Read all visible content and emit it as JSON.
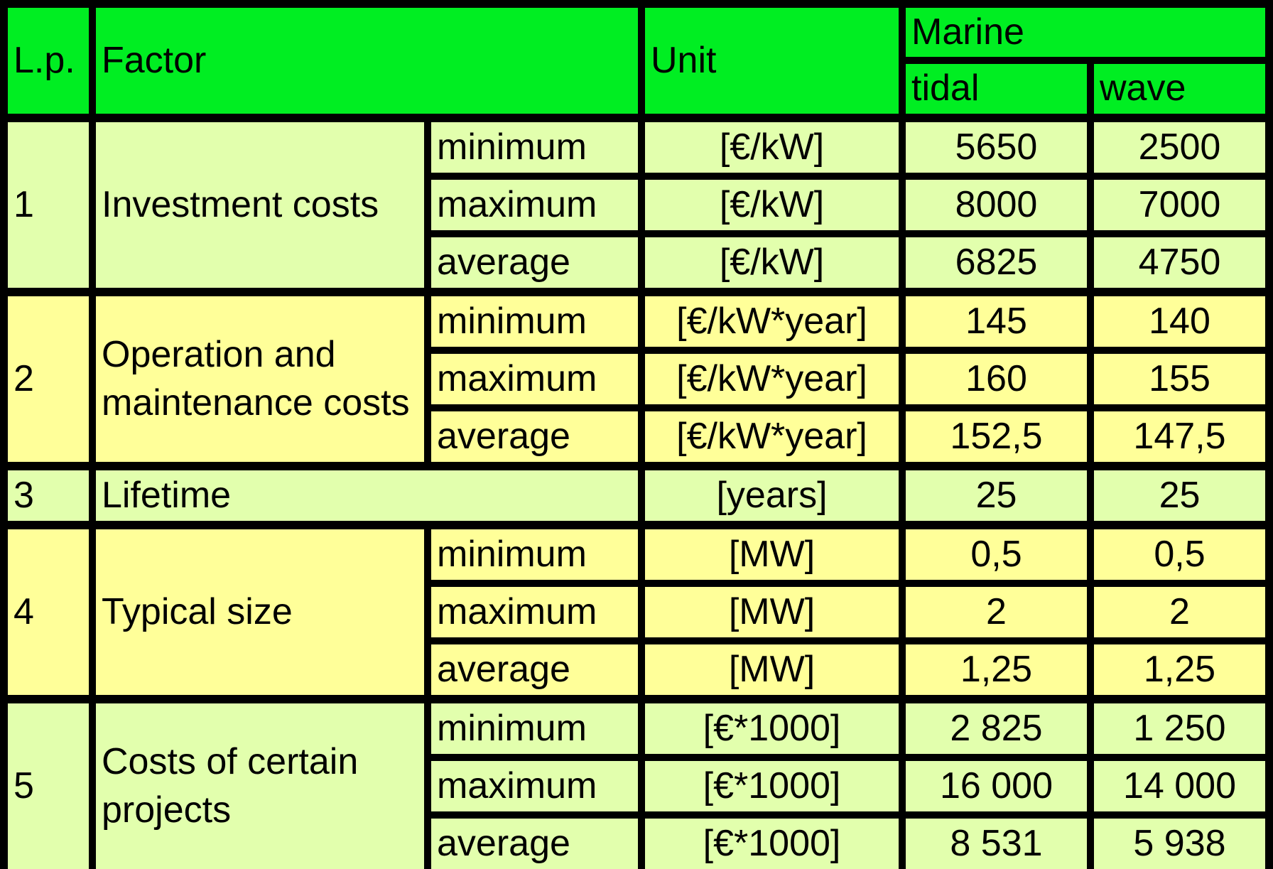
{
  "colors": {
    "header_bg": "#00ee22",
    "row_green_bg": "#e2ffad",
    "row_yellow_bg": "#ffff99",
    "grid_lines": "#000000"
  },
  "header": {
    "lp": "L.p.",
    "factor": "Factor",
    "unit": "Unit",
    "marine": "Marine",
    "tidal": "tidal",
    "wave": "wave"
  },
  "rows": [
    {
      "lp": "1",
      "factor": "Investment costs",
      "color": "green",
      "subrows": [
        {
          "label": "minimum",
          "unit": "[€/kW]",
          "tidal": "5650",
          "wave": "2500"
        },
        {
          "label": "maximum",
          "unit": "[€/kW]",
          "tidal": "8000",
          "wave": "7000"
        },
        {
          "label": "average",
          "unit": "[€/kW]",
          "tidal": "6825",
          "wave": "4750"
        }
      ]
    },
    {
      "lp": "2",
      "factor": "Operation and maintenance costs",
      "color": "yellow",
      "subrows": [
        {
          "label": "minimum",
          "unit": "[€/kW*year]",
          "tidal": "145",
          "wave": "140"
        },
        {
          "label": "maximum",
          "unit": "[€/kW*year]",
          "tidal": "160",
          "wave": "155"
        },
        {
          "label": "average",
          "unit": "[€/kW*year]",
          "tidal": "152,5",
          "wave": "147,5"
        }
      ]
    },
    {
      "lp": "3",
      "factor": "Lifetime",
      "color": "green",
      "unit": "[years]",
      "tidal": "25",
      "wave": "25"
    },
    {
      "lp": "4",
      "factor": "Typical size",
      "color": "yellow",
      "subrows": [
        {
          "label": "minimum",
          "unit": "[MW]",
          "tidal": "0,5",
          "wave": "0,5"
        },
        {
          "label": "maximum",
          "unit": "[MW]",
          "tidal": "2",
          "wave": "2"
        },
        {
          "label": "average",
          "unit": "[MW]",
          "tidal": "1,25",
          "wave": "1,25"
        }
      ]
    },
    {
      "lp": "5",
      "factor": "Costs of certain projects",
      "color": "green",
      "subrows": [
        {
          "label": "minimum",
          "unit": "[€*1000]",
          "tidal": "2 825",
          "wave": "1 250"
        },
        {
          "label": "maximum",
          "unit": "[€*1000]",
          "tidal": "16 000",
          "wave": "14 000"
        },
        {
          "label": "average",
          "unit": "[€*1000]",
          "tidal": "8 531",
          "wave": "5 938"
        }
      ]
    }
  ]
}
